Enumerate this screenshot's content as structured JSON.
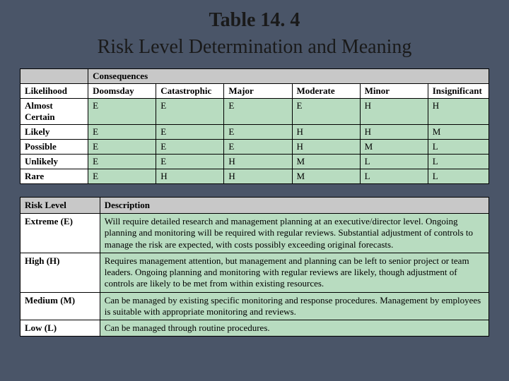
{
  "title": {
    "number": "Table 14. 4",
    "text": "Risk Level Determination and Meaning"
  },
  "matrix": {
    "corner_blank": "",
    "consequences_label": "Consequences",
    "row_header": "Likelihood",
    "columns": [
      "Doomsday",
      "Catastrophic",
      "Major",
      "Moderate",
      "Minor",
      "Insignificant"
    ],
    "rows": [
      {
        "label": "Almost Certain",
        "cells": [
          "E",
          "E",
          "E",
          "E",
          "H",
          "H"
        ]
      },
      {
        "label": "Likely",
        "cells": [
          "E",
          "E",
          "E",
          "H",
          "H",
          "M"
        ]
      },
      {
        "label": "Possible",
        "cells": [
          "E",
          "E",
          "E",
          "H",
          "M",
          "L"
        ]
      },
      {
        "label": "Unlikely",
        "cells": [
          "E",
          "E",
          "H",
          "M",
          "L",
          "L"
        ]
      },
      {
        "label": "Rare",
        "cells": [
          "E",
          "H",
          "H",
          "M",
          "L",
          "L"
        ]
      }
    ],
    "colors": {
      "header_bg": "#c8c8c8",
      "cell_bg": "#b8dcc0",
      "border": "#000000"
    }
  },
  "descriptions": {
    "header_level": "Risk Level",
    "header_desc": "Description",
    "rows": [
      {
        "level": "Extreme (E)",
        "desc": "Will require detailed research and management planning at an executive/director level. Ongoing planning and monitoring will be required with regular reviews. Substantial adjustment of controls to manage the risk are expected, with costs possibly exceeding original forecasts."
      },
      {
        "level": "High (H)",
        "desc": "Requires management attention, but management and planning can be left to senior project or team leaders. Ongoing planning and monitoring with regular reviews are likely, though adjustment of controls are likely to be met from within existing resources."
      },
      {
        "level": "Medium (M)",
        "desc": "Can be managed by existing specific monitoring and response procedures. Management by employees is suitable with appropriate monitoring and reviews."
      },
      {
        "level": "Low (L)",
        "desc": "Can be managed through routine procedures."
      }
    ]
  }
}
